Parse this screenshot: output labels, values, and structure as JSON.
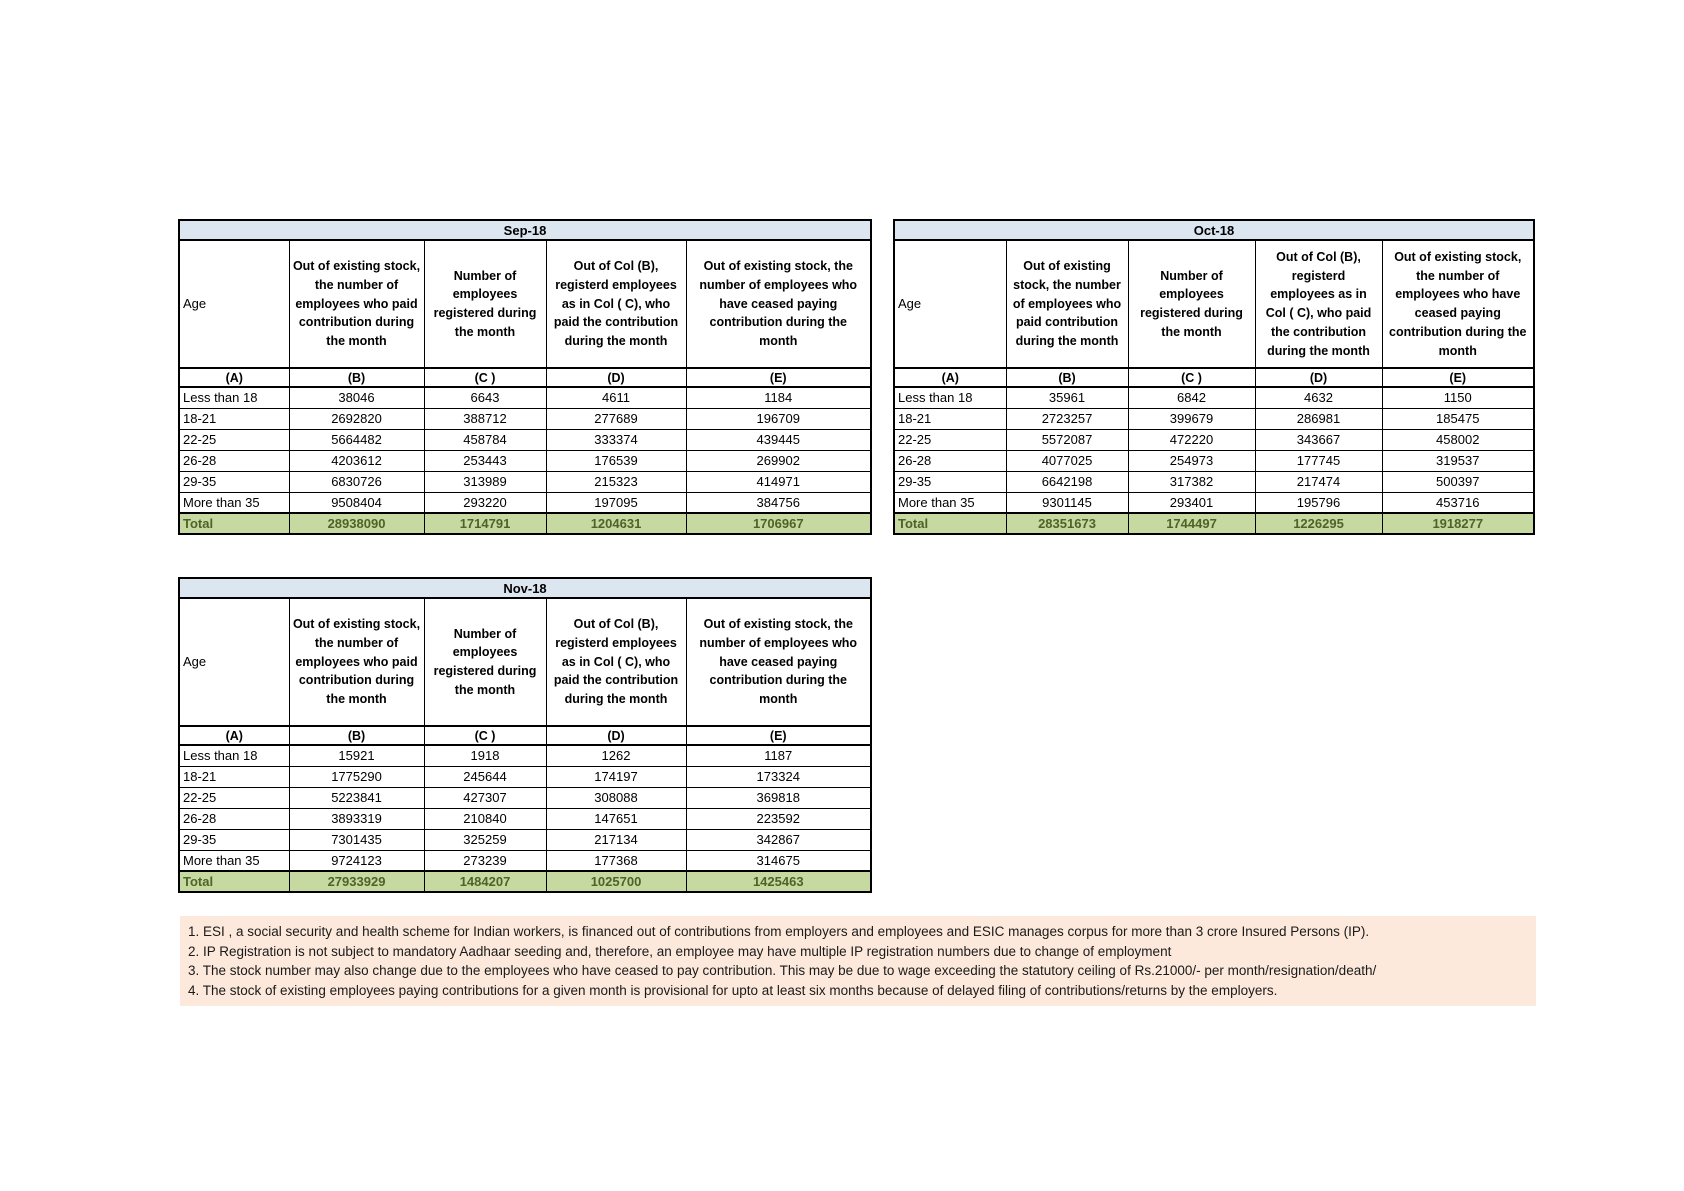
{
  "colors": {
    "title_bg": "#DCE6F1",
    "total_bg": "#C6D9A0",
    "total_text": "#4F6228",
    "footnote_bg": "#FCE9DB",
    "border": "#000000"
  },
  "tables": [
    {
      "title": "Sep-18",
      "headers": [
        "Age",
        "Out of existing stock, the number of employees who paid contribution during the month",
        "Number of employees registered during the month",
        "Out of Col (B), registerd employees as in Col ( C), who paid the contribution during the month",
        "Out of existing stock, the number of employees who have ceased paying contribution during the month"
      ],
      "letters": [
        "(A)",
        "(B)",
        "(C )",
        "(D)",
        "(E)"
      ],
      "rows": [
        [
          "Less than 18",
          "38046",
          "6643",
          "4611",
          "1184"
        ],
        [
          "18-21",
          "2692820",
          "388712",
          "277689",
          "196709"
        ],
        [
          "22-25",
          "5664482",
          "458784",
          "333374",
          "439445"
        ],
        [
          "26-28",
          "4203612",
          "253443",
          "176539",
          "269902"
        ],
        [
          "29-35",
          "6830726",
          "313989",
          "215323",
          "414971"
        ],
        [
          "More than 35",
          "9508404",
          "293220",
          "197095",
          "384756"
        ]
      ],
      "total": [
        "Total",
        "28938090",
        "1714791",
        "1204631",
        "1706967"
      ]
    },
    {
      "title": "Oct-18",
      "headers": [
        "Age",
        "Out of existing stock, the number of employees who paid contribution during the month",
        "Number of employees registered during the month",
        "Out of Col (B), registerd employees as in Col ( C), who paid the contribution during the month",
        "Out of existing stock, the number of employees who have ceased paying contribution during the month"
      ],
      "letters": [
        "(A)",
        "(B)",
        "(C )",
        "(D)",
        "(E)"
      ],
      "rows": [
        [
          "Less than 18",
          "35961",
          "6842",
          "4632",
          "1150"
        ],
        [
          "18-21",
          "2723257",
          "399679",
          "286981",
          "185475"
        ],
        [
          "22-25",
          "5572087",
          "472220",
          "343667",
          "458002"
        ],
        [
          "26-28",
          "4077025",
          "254973",
          "177745",
          "319537"
        ],
        [
          "29-35",
          "6642198",
          "317382",
          "217474",
          "500397"
        ],
        [
          "More than 35",
          "9301145",
          "293401",
          "195796",
          "453716"
        ]
      ],
      "total": [
        "Total",
        "28351673",
        "1744497",
        "1226295",
        "1918277"
      ]
    },
    {
      "title": "Nov-18",
      "headers": [
        "Age",
        "Out of existing stock, the number of employees who paid contribution during the month",
        "Number of employees registered during the month",
        "Out of Col (B), registerd employees as in Col ( C), who paid the contribution during the month",
        "Out of existing stock, the number of employees who have ceased paying contribution during the month"
      ],
      "letters": [
        "(A)",
        "(B)",
        "(C )",
        "(D)",
        "(E)"
      ],
      "rows": [
        [
          "Less than 18",
          "15921",
          "1918",
          "1262",
          "1187"
        ],
        [
          "18-21",
          "1775290",
          "245644",
          "174197",
          "173324"
        ],
        [
          "22-25",
          "5223841",
          "427307",
          "308088",
          "369818"
        ],
        [
          "26-28",
          "3893319",
          "210840",
          "147651",
          "223592"
        ],
        [
          "29-35",
          "7301435",
          "325259",
          "217134",
          "342867"
        ],
        [
          "More than 35",
          "9724123",
          "273239",
          "177368",
          "314675"
        ]
      ],
      "total": [
        "Total",
        "27933929",
        "1484207",
        "1025700",
        "1425463"
      ]
    }
  ],
  "footnotes": [
    "1. ESI , a social security and health scheme for Indian workers, is financed out of contributions from employers and employees and ESIC manages corpus for more than 3 crore Insured Persons (IP).",
    "2. IP Registration is not subject to mandatory Aadhaar seeding and, therefore, an employee may have multiple IP registration numbers due to change of employment",
    "3. The stock number may also change due to the employees who have ceased to pay contribution. This may  be due to wage exceeding the statutory ceiling of  Rs.21000/- per month/resignation/death/",
    "4. The stock of existing employees paying contributions for a given month is provisional for upto at least six months because of delayed filing of contributions/returns by the employers."
  ]
}
